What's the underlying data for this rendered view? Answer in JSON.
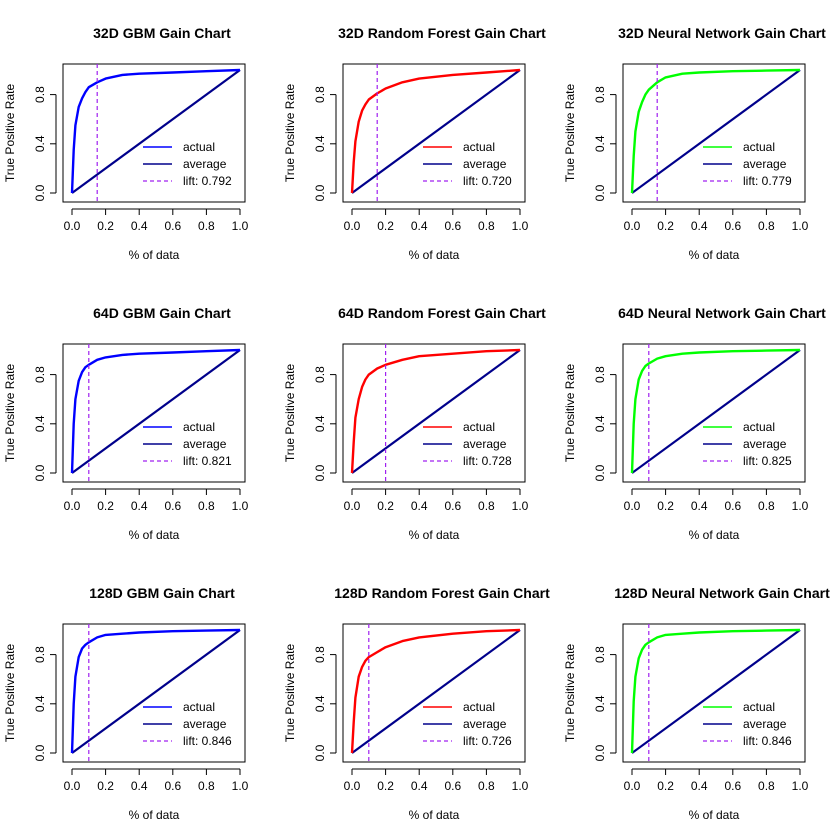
{
  "colors": {
    "axis": "#000000",
    "diag": "#00008b",
    "lift": "#a020f0"
  },
  "chart_data": [
    {
      "type": "line",
      "title": "32D GBM Gain Chart",
      "xlabel": "% of data",
      "ylabel": "True Positive Rate",
      "xlim": [
        0,
        1
      ],
      "ylim": [
        0,
        1
      ],
      "x_ticks": [
        "0.0",
        "0.2",
        "0.4",
        "0.6",
        "0.8",
        "1.0"
      ],
      "y_ticks": [
        "0.0",
        "0.4",
        "0.8"
      ],
      "color": "#0000ff",
      "lift_x": 0.15,
      "series": [
        {
          "name": "actual",
          "x": [
            0,
            0.01,
            0.02,
            0.04,
            0.06,
            0.08,
            0.1,
            0.15,
            0.2,
            0.3,
            0.4,
            0.6,
            0.8,
            1
          ],
          "values": [
            0,
            0.35,
            0.55,
            0.7,
            0.77,
            0.82,
            0.86,
            0.9,
            0.93,
            0.96,
            0.97,
            0.98,
            0.99,
            1
          ]
        },
        {
          "name": "average",
          "x": [
            0,
            1
          ],
          "values": [
            0,
            1
          ]
        }
      ],
      "legend": [
        "actual",
        "average",
        "lift: 0.792"
      ]
    },
    {
      "type": "line",
      "title": "32D Random Forest Gain Chart",
      "xlabel": "% of data",
      "ylabel": "True Positive Rate",
      "xlim": [
        0,
        1
      ],
      "ylim": [
        0,
        1
      ],
      "x_ticks": [
        "0.0",
        "0.2",
        "0.4",
        "0.6",
        "0.8",
        "1.0"
      ],
      "y_ticks": [
        "0.0",
        "0.4",
        "0.8"
      ],
      "color": "#ff0000",
      "lift_x": 0.15,
      "series": [
        {
          "name": "actual",
          "x": [
            0,
            0.01,
            0.02,
            0.04,
            0.06,
            0.08,
            0.1,
            0.15,
            0.2,
            0.3,
            0.4,
            0.6,
            0.8,
            1
          ],
          "values": [
            0,
            0.25,
            0.42,
            0.58,
            0.67,
            0.72,
            0.76,
            0.81,
            0.85,
            0.9,
            0.93,
            0.96,
            0.98,
            1
          ]
        },
        {
          "name": "average",
          "x": [
            0,
            1
          ],
          "values": [
            0,
            1
          ]
        }
      ],
      "legend": [
        "actual",
        "average",
        "lift: 0.720"
      ]
    },
    {
      "type": "line",
      "title": "32D Neural Network Gain Chart",
      "xlabel": "% of data",
      "ylabel": "True Positive Rate",
      "xlim": [
        0,
        1
      ],
      "ylim": [
        0,
        1
      ],
      "x_ticks": [
        "0.0",
        "0.2",
        "0.4",
        "0.6",
        "0.8",
        "1.0"
      ],
      "y_ticks": [
        "0.0",
        "0.4",
        "0.8"
      ],
      "color": "#00ff00",
      "lift_x": 0.15,
      "series": [
        {
          "name": "actual",
          "x": [
            0,
            0.01,
            0.02,
            0.04,
            0.06,
            0.08,
            0.1,
            0.15,
            0.2,
            0.3,
            0.4,
            0.6,
            0.8,
            1
          ],
          "values": [
            0,
            0.3,
            0.5,
            0.66,
            0.74,
            0.8,
            0.84,
            0.9,
            0.94,
            0.97,
            0.98,
            0.99,
            0.995,
            1
          ]
        },
        {
          "name": "average",
          "x": [
            0,
            1
          ],
          "values": [
            0,
            1
          ]
        }
      ],
      "legend": [
        "actual",
        "average",
        "lift: 0.779"
      ]
    },
    {
      "type": "line",
      "title": "64D GBM Gain Chart",
      "xlabel": "% of data",
      "ylabel": "True Positive Rate",
      "xlim": [
        0,
        1
      ],
      "ylim": [
        0,
        1
      ],
      "x_ticks": [
        "0.0",
        "0.2",
        "0.4",
        "0.6",
        "0.8",
        "1.0"
      ],
      "y_ticks": [
        "0.0",
        "0.4",
        "0.8"
      ],
      "color": "#0000ff",
      "lift_x": 0.1,
      "series": [
        {
          "name": "actual",
          "x": [
            0,
            0.01,
            0.02,
            0.04,
            0.06,
            0.08,
            0.1,
            0.15,
            0.2,
            0.3,
            0.4,
            0.6,
            0.8,
            1
          ],
          "values": [
            0,
            0.4,
            0.6,
            0.75,
            0.82,
            0.86,
            0.88,
            0.92,
            0.94,
            0.96,
            0.97,
            0.98,
            0.99,
            1
          ]
        },
        {
          "name": "average",
          "x": [
            0,
            1
          ],
          "values": [
            0,
            1
          ]
        }
      ],
      "legend": [
        "actual",
        "average",
        "lift: 0.821"
      ]
    },
    {
      "type": "line",
      "title": "64D Random Forest Gain Chart",
      "xlabel": "% of data",
      "ylabel": "True Positive Rate",
      "xlim": [
        0,
        1
      ],
      "ylim": [
        0,
        1
      ],
      "x_ticks": [
        "0.0",
        "0.2",
        "0.4",
        "0.6",
        "0.8",
        "1.0"
      ],
      "y_ticks": [
        "0.0",
        "0.4",
        "0.8"
      ],
      "color": "#ff0000",
      "lift_x": 0.2,
      "series": [
        {
          "name": "actual",
          "x": [
            0,
            0.01,
            0.02,
            0.04,
            0.06,
            0.08,
            0.1,
            0.15,
            0.2,
            0.3,
            0.4,
            0.6,
            0.8,
            1
          ],
          "values": [
            0,
            0.25,
            0.45,
            0.6,
            0.7,
            0.76,
            0.8,
            0.85,
            0.88,
            0.92,
            0.95,
            0.97,
            0.99,
            1
          ]
        },
        {
          "name": "average",
          "x": [
            0,
            1
          ],
          "values": [
            0,
            1
          ]
        }
      ],
      "legend": [
        "actual",
        "average",
        "lift: 0.728"
      ]
    },
    {
      "type": "line",
      "title": "64D Neural Network Gain Chart",
      "xlabel": "% of data",
      "ylabel": "True Positive Rate",
      "xlim": [
        0,
        1
      ],
      "ylim": [
        0,
        1
      ],
      "x_ticks": [
        "0.0",
        "0.2",
        "0.4",
        "0.6",
        "0.8",
        "1.0"
      ],
      "y_ticks": [
        "0.0",
        "0.4",
        "0.8"
      ],
      "color": "#00ff00",
      "lift_x": 0.1,
      "series": [
        {
          "name": "actual",
          "x": [
            0,
            0.01,
            0.02,
            0.04,
            0.06,
            0.08,
            0.1,
            0.15,
            0.2,
            0.3,
            0.4,
            0.6,
            0.8,
            1
          ],
          "values": [
            0,
            0.4,
            0.6,
            0.76,
            0.83,
            0.87,
            0.89,
            0.93,
            0.95,
            0.97,
            0.98,
            0.99,
            0.995,
            1
          ]
        },
        {
          "name": "average",
          "x": [
            0,
            1
          ],
          "values": [
            0,
            1
          ]
        }
      ],
      "legend": [
        "actual",
        "average",
        "lift: 0.825"
      ]
    },
    {
      "type": "line",
      "title": "128D GBM Gain Chart",
      "xlabel": "% of data",
      "ylabel": "True Positive Rate",
      "xlim": [
        0,
        1
      ],
      "ylim": [
        0,
        1
      ],
      "x_ticks": [
        "0.0",
        "0.2",
        "0.4",
        "0.6",
        "0.8",
        "1.0"
      ],
      "y_ticks": [
        "0.0",
        "0.4",
        "0.8"
      ],
      "color": "#0000ff",
      "lift_x": 0.1,
      "series": [
        {
          "name": "actual",
          "x": [
            0,
            0.01,
            0.02,
            0.04,
            0.06,
            0.08,
            0.1,
            0.15,
            0.2,
            0.3,
            0.4,
            0.6,
            0.8,
            1
          ],
          "values": [
            0,
            0.4,
            0.62,
            0.78,
            0.85,
            0.88,
            0.9,
            0.94,
            0.96,
            0.97,
            0.98,
            0.99,
            0.995,
            1
          ]
        },
        {
          "name": "average",
          "x": [
            0,
            1
          ],
          "values": [
            0,
            1
          ]
        }
      ],
      "legend": [
        "actual",
        "average",
        "lift: 0.846"
      ]
    },
    {
      "type": "line",
      "title": "128D Random Forest Gain Chart",
      "xlabel": "% of data",
      "ylabel": "True Positive Rate",
      "xlim": [
        0,
        1
      ],
      "ylim": [
        0,
        1
      ],
      "x_ticks": [
        "0.0",
        "0.2",
        "0.4",
        "0.6",
        "0.8",
        "1.0"
      ],
      "y_ticks": [
        "0.0",
        "0.4",
        "0.8"
      ],
      "color": "#ff0000",
      "lift_x": 0.1,
      "series": [
        {
          "name": "actual",
          "x": [
            0,
            0.01,
            0.02,
            0.04,
            0.06,
            0.08,
            0.1,
            0.15,
            0.2,
            0.3,
            0.4,
            0.6,
            0.8,
            1
          ],
          "values": [
            0,
            0.25,
            0.45,
            0.62,
            0.7,
            0.75,
            0.78,
            0.82,
            0.86,
            0.91,
            0.94,
            0.97,
            0.99,
            1
          ]
        },
        {
          "name": "average",
          "x": [
            0,
            1
          ],
          "values": [
            0,
            1
          ]
        }
      ],
      "legend": [
        "actual",
        "average",
        "lift: 0.726"
      ]
    },
    {
      "type": "line",
      "title": "128D Neural Network Gain Chart",
      "xlabel": "% of data",
      "ylabel": "True Positive Rate",
      "xlim": [
        0,
        1
      ],
      "ylim": [
        0,
        1
      ],
      "x_ticks": [
        "0.0",
        "0.2",
        "0.4",
        "0.6",
        "0.8",
        "1.0"
      ],
      "y_ticks": [
        "0.0",
        "0.4",
        "0.8"
      ],
      "color": "#00ff00",
      "lift_x": 0.1,
      "series": [
        {
          "name": "actual",
          "x": [
            0,
            0.01,
            0.02,
            0.04,
            0.06,
            0.08,
            0.1,
            0.15,
            0.2,
            0.3,
            0.4,
            0.6,
            0.8,
            1
          ],
          "values": [
            0,
            0.42,
            0.62,
            0.77,
            0.84,
            0.88,
            0.9,
            0.94,
            0.96,
            0.97,
            0.98,
            0.99,
            0.995,
            1
          ]
        },
        {
          "name": "average",
          "x": [
            0,
            1
          ],
          "values": [
            0,
            1
          ]
        }
      ],
      "legend": [
        "actual",
        "average",
        "lift: 0.846"
      ]
    }
  ]
}
